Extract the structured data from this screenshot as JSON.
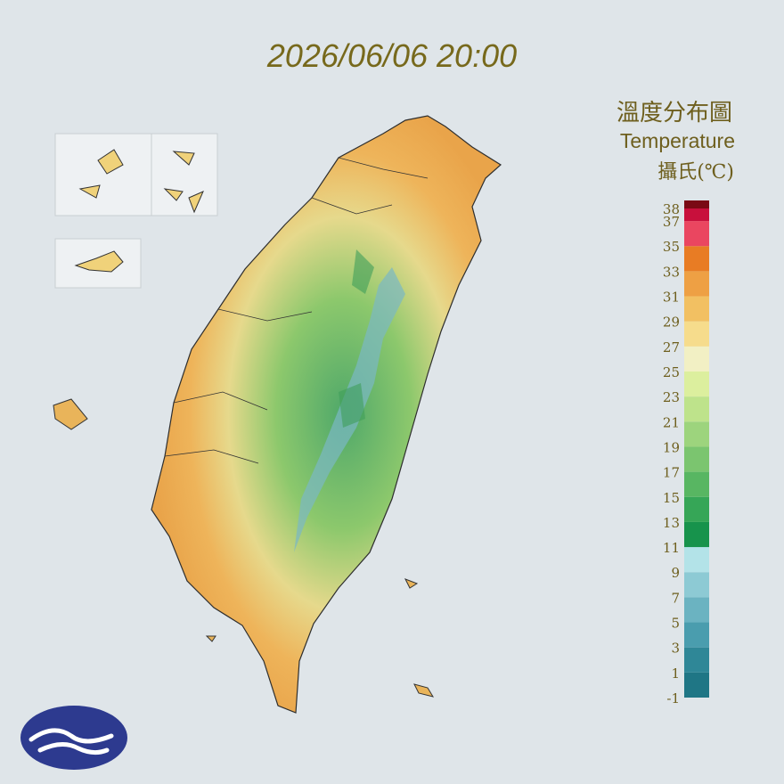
{
  "title": "2026/06/06 20:00",
  "legend": {
    "title": "溫度分布圖",
    "subtitle": "Temperature",
    "unit": "攝氏(℃)",
    "ticks": [
      -1,
      1,
      3,
      5,
      7,
      9,
      11,
      13,
      15,
      17,
      19,
      21,
      23,
      25,
      27,
      29,
      31,
      33,
      35,
      37,
      38
    ],
    "colors": [
      "#1f7685",
      "#2f8797",
      "#4a9dae",
      "#6bb3c1",
      "#8dcad4",
      "#b3e3e8",
      "#17934c",
      "#36a657",
      "#58b662",
      "#7bc56f",
      "#9dd47d",
      "#bee38b",
      "#dcef9e",
      "#f2f0c4",
      "#f6dc8c",
      "#f2c062",
      "#eea044",
      "#e87c24",
      "#ea4660",
      "#c8103c",
      "#7a0a14",
      "#9a6ab8"
    ]
  }
}
